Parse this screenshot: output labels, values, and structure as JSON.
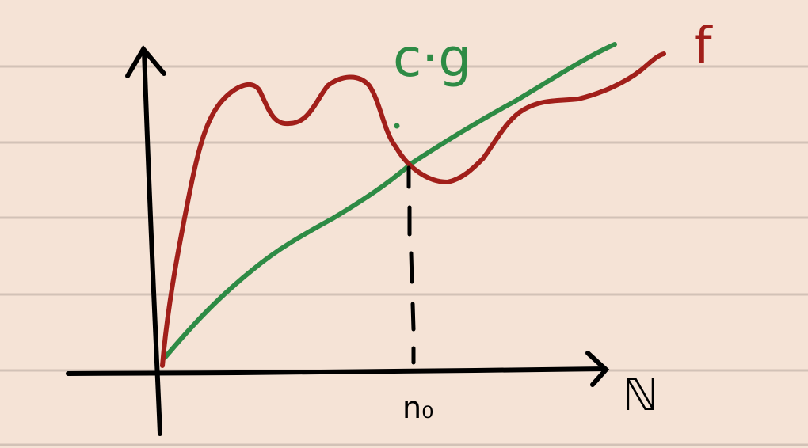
{
  "labels": {
    "cg": "c·g",
    "f": "f",
    "n0": "n₀",
    "x_axis": "ℕ"
  },
  "colors": {
    "background": "#f5e3d6",
    "ruled_line": "#d2c2b7",
    "axes": "#000000",
    "f_curve": "#a11f1a",
    "cg_curve": "#2e8b45",
    "dashed": "#000000"
  }
}
